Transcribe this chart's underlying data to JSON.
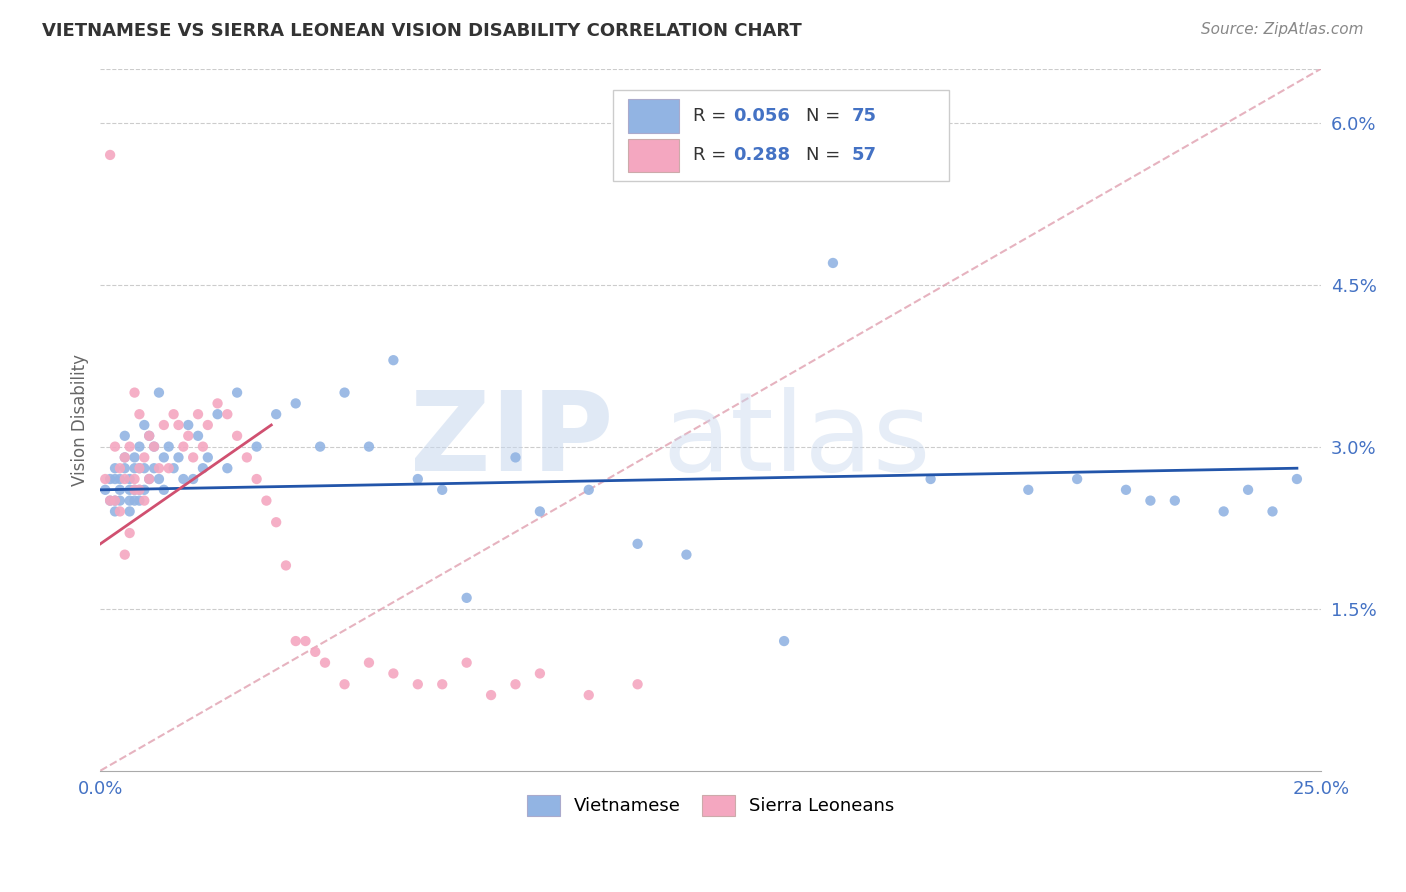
{
  "title": "VIETNAMESE VS SIERRA LEONEAN VISION DISABILITY CORRELATION CHART",
  "source": "Source: ZipAtlas.com",
  "ylabel": "Vision Disability",
  "xlim": [
    0.0,
    0.25
  ],
  "ylim": [
    0.0,
    0.065
  ],
  "ytick_positions": [
    0.015,
    0.03,
    0.045,
    0.06
  ],
  "ytick_labels": [
    "1.5%",
    "3.0%",
    "4.5%",
    "6.0%"
  ],
  "viet_color": "#92b4e3",
  "sl_color": "#f4a7c0",
  "viet_line_color": "#2255aa",
  "sl_line_color": "#d05070",
  "ref_line_color": "#e0a0b0",
  "watermark_zip": "ZIP",
  "watermark_atlas": "atlas",
  "legend_R_color": "#4472c4",
  "legend_N_color": "#4472c4",
  "viet_x": [
    0.001,
    0.002,
    0.002,
    0.003,
    0.003,
    0.003,
    0.003,
    0.004,
    0.004,
    0.004,
    0.005,
    0.005,
    0.005,
    0.006,
    0.006,
    0.006,
    0.006,
    0.007,
    0.007,
    0.007,
    0.007,
    0.008,
    0.008,
    0.008,
    0.008,
    0.009,
    0.009,
    0.009,
    0.01,
    0.01,
    0.011,
    0.011,
    0.012,
    0.012,
    0.013,
    0.013,
    0.014,
    0.015,
    0.016,
    0.017,
    0.018,
    0.019,
    0.02,
    0.021,
    0.022,
    0.024,
    0.026,
    0.028,
    0.032,
    0.036,
    0.04,
    0.045,
    0.05,
    0.055,
    0.06,
    0.065,
    0.07,
    0.075,
    0.085,
    0.09,
    0.1,
    0.11,
    0.12,
    0.14,
    0.15,
    0.17,
    0.19,
    0.2,
    0.21,
    0.215,
    0.22,
    0.23,
    0.235,
    0.24,
    0.245
  ],
  "viet_y": [
    0.026,
    0.027,
    0.025,
    0.028,
    0.027,
    0.025,
    0.024,
    0.026,
    0.025,
    0.027,
    0.029,
    0.031,
    0.028,
    0.027,
    0.025,
    0.024,
    0.026,
    0.029,
    0.028,
    0.026,
    0.025,
    0.03,
    0.028,
    0.026,
    0.025,
    0.032,
    0.028,
    0.026,
    0.031,
    0.027,
    0.03,
    0.028,
    0.035,
    0.027,
    0.029,
    0.026,
    0.03,
    0.028,
    0.029,
    0.027,
    0.032,
    0.027,
    0.031,
    0.028,
    0.029,
    0.033,
    0.028,
    0.035,
    0.03,
    0.033,
    0.034,
    0.03,
    0.035,
    0.03,
    0.038,
    0.027,
    0.026,
    0.016,
    0.029,
    0.024,
    0.026,
    0.021,
    0.02,
    0.012,
    0.047,
    0.027,
    0.026,
    0.027,
    0.026,
    0.025,
    0.025,
    0.024,
    0.026,
    0.024,
    0.027
  ],
  "sl_x": [
    0.001,
    0.002,
    0.002,
    0.003,
    0.003,
    0.004,
    0.004,
    0.005,
    0.005,
    0.005,
    0.006,
    0.006,
    0.007,
    0.007,
    0.007,
    0.008,
    0.008,
    0.008,
    0.009,
    0.009,
    0.01,
    0.01,
    0.011,
    0.012,
    0.013,
    0.014,
    0.015,
    0.016,
    0.017,
    0.018,
    0.019,
    0.02,
    0.021,
    0.022,
    0.024,
    0.026,
    0.028,
    0.03,
    0.032,
    0.034,
    0.036,
    0.038,
    0.04,
    0.042,
    0.044,
    0.046,
    0.05,
    0.055,
    0.06,
    0.065,
    0.07,
    0.075,
    0.08,
    0.085,
    0.09,
    0.1,
    0.11
  ],
  "sl_y": [
    0.027,
    0.057,
    0.025,
    0.03,
    0.025,
    0.028,
    0.024,
    0.029,
    0.027,
    0.02,
    0.03,
    0.022,
    0.035,
    0.027,
    0.026,
    0.033,
    0.028,
    0.026,
    0.029,
    0.025,
    0.031,
    0.027,
    0.03,
    0.028,
    0.032,
    0.028,
    0.033,
    0.032,
    0.03,
    0.031,
    0.029,
    0.033,
    0.03,
    0.032,
    0.034,
    0.033,
    0.031,
    0.029,
    0.027,
    0.025,
    0.023,
    0.019,
    0.012,
    0.012,
    0.011,
    0.01,
    0.008,
    0.01,
    0.009,
    0.008,
    0.008,
    0.01,
    0.007,
    0.008,
    0.009,
    0.007,
    0.008
  ],
  "viet_line_x": [
    0.0,
    0.245
  ],
  "viet_line_y": [
    0.026,
    0.028
  ],
  "sl_line_x": [
    0.0,
    0.035
  ],
  "sl_line_y": [
    0.021,
    0.032
  ]
}
